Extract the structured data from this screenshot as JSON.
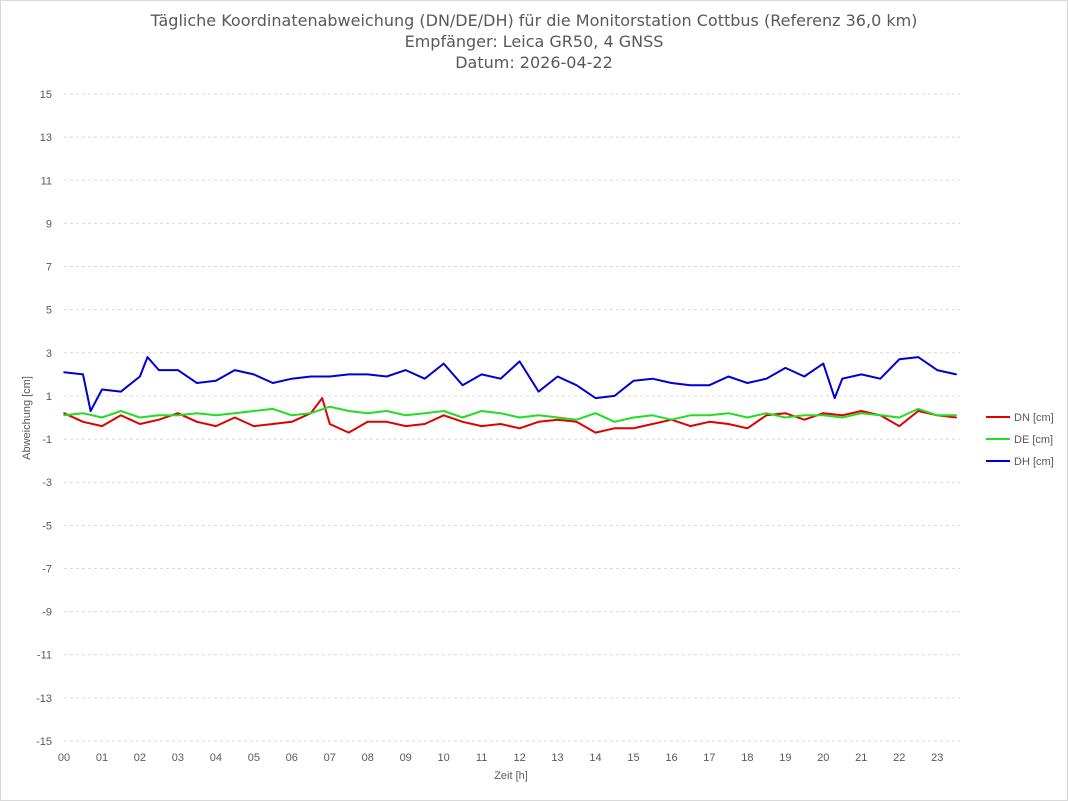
{
  "chart_data": {
    "type": "line",
    "title": "Tägliche Koordinatenabweichung (DN/DE/DH) für die Monitorstation Cottbus (Referenz 36,0 km)",
    "subtitle": "Empfänger: Leica GR50, 4 GNSS",
    "date_label": "Datum: 2026-04-22",
    "xlabel": "Zeit [h]",
    "ylabel": "Abweichung [cm]",
    "xlim": [
      0,
      23.6
    ],
    "ylim": [
      -15,
      15
    ],
    "x_ticks": [
      "00",
      "01",
      "02",
      "03",
      "04",
      "05",
      "06",
      "07",
      "08",
      "09",
      "10",
      "11",
      "12",
      "13",
      "14",
      "15",
      "16",
      "17",
      "18",
      "19",
      "20",
      "21",
      "22",
      "23"
    ],
    "y_ticks": [
      15,
      13,
      11,
      9,
      7,
      5,
      3,
      1,
      -1,
      -3,
      -5,
      -7,
      -9,
      -11,
      -13,
      -15
    ],
    "grid": "horizontal dashed",
    "legend_position": "right",
    "series": [
      {
        "name": "DN [cm]",
        "color": "#e00000",
        "x": [
          0,
          0.5,
          1,
          1.5,
          2,
          2.5,
          3,
          3.5,
          4,
          4.5,
          5,
          5.5,
          6,
          6.5,
          6.8,
          7,
          7.5,
          8,
          8.5,
          9,
          9.5,
          10,
          10.5,
          11,
          11.5,
          12,
          12.5,
          13,
          13.5,
          14,
          14.5,
          15,
          15.5,
          16,
          16.5,
          17,
          17.5,
          18,
          18.5,
          19,
          19.5,
          20,
          20.5,
          21,
          21.5,
          22,
          22.5,
          23,
          23.5
        ],
        "values": [
          0.2,
          -0.2,
          -0.4,
          0.1,
          -0.3,
          -0.1,
          0.2,
          -0.2,
          -0.4,
          0.0,
          -0.4,
          -0.3,
          -0.2,
          0.2,
          0.9,
          -0.3,
          -0.7,
          -0.2,
          -0.2,
          -0.4,
          -0.3,
          0.1,
          -0.2,
          -0.4,
          -0.3,
          -0.5,
          -0.2,
          -0.1,
          -0.2,
          -0.7,
          -0.5,
          -0.5,
          -0.3,
          -0.1,
          -0.4,
          -0.2,
          -0.3,
          -0.5,
          0.1,
          0.2,
          -0.1,
          0.2,
          0.1,
          0.3,
          0.1,
          -0.4,
          0.3,
          0.1,
          0.0
        ]
      },
      {
        "name": "DE [cm]",
        "color": "#22dd22",
        "x": [
          0,
          0.5,
          1,
          1.5,
          2,
          2.5,
          3,
          3.5,
          4,
          4.5,
          5,
          5.5,
          6,
          6.5,
          7,
          7.5,
          8,
          8.5,
          9,
          9.5,
          10,
          10.5,
          11,
          11.5,
          12,
          12.5,
          13,
          13.5,
          14,
          14.5,
          15,
          15.5,
          16,
          16.5,
          17,
          17.5,
          18,
          18.5,
          19,
          19.5,
          20,
          20.5,
          21,
          21.5,
          22,
          22.5,
          23,
          23.5
        ],
        "values": [
          0.1,
          0.2,
          0.0,
          0.3,
          0.0,
          0.1,
          0.1,
          0.2,
          0.1,
          0.2,
          0.3,
          0.4,
          0.1,
          0.2,
          0.5,
          0.3,
          0.2,
          0.3,
          0.1,
          0.2,
          0.3,
          0.0,
          0.3,
          0.2,
          0.0,
          0.1,
          0.0,
          -0.1,
          0.2,
          -0.2,
          0.0,
          0.1,
          -0.1,
          0.1,
          0.1,
          0.2,
          0.0,
          0.2,
          0.0,
          0.1,
          0.1,
          0.0,
          0.2,
          0.1,
          0.0,
          0.4,
          0.1,
          0.1
        ]
      },
      {
        "name": "DH [cm]",
        "color": "#0000d0",
        "x": [
          0,
          0.5,
          0.7,
          1,
          1.5,
          2,
          2.2,
          2.5,
          3,
          3.5,
          4,
          4.5,
          5,
          5.5,
          6,
          6.5,
          7,
          7.5,
          8,
          8.5,
          9,
          9.5,
          10,
          10.5,
          11,
          11.5,
          12,
          12.5,
          13,
          13.5,
          14,
          14.5,
          15,
          15.5,
          16,
          16.5,
          17,
          17.5,
          18,
          18.5,
          19,
          19.5,
          20,
          20.3,
          20.5,
          21,
          21.5,
          22,
          22.5,
          23,
          23.5
        ],
        "values": [
          2.1,
          2.0,
          0.3,
          1.3,
          1.2,
          1.9,
          2.8,
          2.2,
          2.2,
          1.6,
          1.7,
          2.2,
          2.0,
          1.6,
          1.8,
          1.9,
          1.9,
          2.0,
          2.0,
          1.9,
          2.2,
          1.8,
          2.5,
          1.5,
          2.0,
          1.8,
          2.6,
          1.2,
          1.9,
          1.5,
          0.9,
          1.0,
          1.7,
          1.8,
          1.6,
          1.5,
          1.5,
          1.9,
          1.6,
          1.8,
          2.3,
          1.9,
          2.5,
          0.9,
          1.8,
          2.0,
          1.8,
          2.7,
          2.8,
          2.2,
          2.0
        ]
      }
    ]
  }
}
